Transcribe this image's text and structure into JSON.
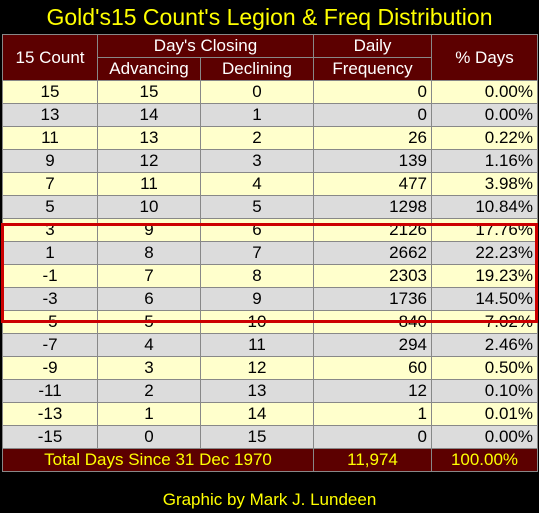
{
  "title": "Gold's15 Count's Legion & Freq Distribution",
  "headers": {
    "count": "15 Count",
    "days_closing": "Day's Closing",
    "advancing": "Advancing",
    "declining": "Declining",
    "daily_freq_1": "Daily",
    "daily_freq_2": "Frequency",
    "pct_days": "% Days"
  },
  "rows": [
    {
      "count": "15",
      "adv": "15",
      "dec": "0",
      "freq": "0",
      "pct": "0.00%"
    },
    {
      "count": "13",
      "adv": "14",
      "dec": "1",
      "freq": "0",
      "pct": "0.00%"
    },
    {
      "count": "11",
      "adv": "13",
      "dec": "2",
      "freq": "26",
      "pct": "0.22%"
    },
    {
      "count": "9",
      "adv": "12",
      "dec": "3",
      "freq": "139",
      "pct": "1.16%"
    },
    {
      "count": "7",
      "adv": "11",
      "dec": "4",
      "freq": "477",
      "pct": "3.98%"
    },
    {
      "count": "5",
      "adv": "10",
      "dec": "5",
      "freq": "1298",
      "pct": "10.84%"
    },
    {
      "count": "3",
      "adv": "9",
      "dec": "6",
      "freq": "2126",
      "pct": "17.76%"
    },
    {
      "count": "1",
      "adv": "8",
      "dec": "7",
      "freq": "2662",
      "pct": "22.23%"
    },
    {
      "count": "-1",
      "adv": "7",
      "dec": "8",
      "freq": "2303",
      "pct": "19.23%"
    },
    {
      "count": "-3",
      "adv": "6",
      "dec": "9",
      "freq": "1736",
      "pct": "14.50%"
    },
    {
      "count": "-5",
      "adv": "5",
      "dec": "10",
      "freq": "840",
      "pct": "7.02%"
    },
    {
      "count": "-7",
      "adv": "4",
      "dec": "11",
      "freq": "294",
      "pct": "2.46%"
    },
    {
      "count": "-9",
      "adv": "3",
      "dec": "12",
      "freq": "60",
      "pct": "0.50%"
    },
    {
      "count": "-11",
      "adv": "2",
      "dec": "13",
      "freq": "12",
      "pct": "0.10%"
    },
    {
      "count": "-13",
      "adv": "1",
      "dec": "14",
      "freq": "1",
      "pct": "0.01%"
    },
    {
      "count": "-15",
      "adv": "0",
      "dec": "15",
      "freq": "0",
      "pct": "0.00%"
    }
  ],
  "total": {
    "label": "Total Days Since 31 Dec 1970",
    "freq": "11,974",
    "pct": "100.00%"
  },
  "footer": "Graphic by Mark J. Lundeen",
  "colors": {
    "title_text": "#ffff00",
    "header_bg": "#5c0000",
    "row_yellow": "#ffffcc",
    "row_gray": "#dcdcdc",
    "highlight_border": "#cc0000"
  }
}
